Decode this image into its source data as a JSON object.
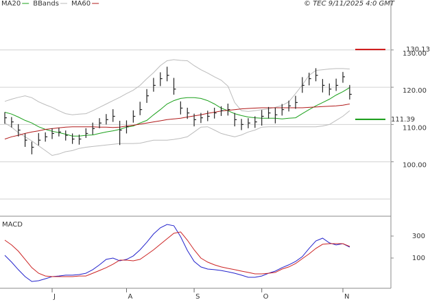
{
  "chart_data": {
    "type": "ohlc",
    "source": "© TEC 9/11/2025 4:0 GMT",
    "categories": [
      null,
      null,
      null,
      null,
      null,
      null,
      null,
      "J",
      null,
      null,
      null,
      null,
      null,
      null,
      null,
      null,
      null,
      null,
      "A",
      null,
      null,
      null,
      null,
      null,
      null,
      null,
      null,
      null,
      "S",
      null,
      null,
      null,
      null,
      null,
      null,
      null,
      null,
      null,
      "O",
      null,
      null,
      null,
      null,
      null,
      null,
      null,
      null,
      null,
      null,
      null,
      "N",
      null
    ],
    "high": [
      113.3,
      112.0,
      110.1,
      107.6,
      105.4,
      107.7,
      107.9,
      109.0,
      109.1,
      108.4,
      107.6,
      107.3,
      109.0,
      110.5,
      111.7,
      112.8,
      114.1,
      111.0,
      111.1,
      113.8,
      116.1,
      119.5,
      122.5,
      124.0,
      125.5,
      122.5,
      116.2,
      114.5,
      112.9,
      113.1,
      113.7,
      114.5,
      114.9,
      115.6,
      113.1,
      111.5,
      111.7,
      112.2,
      113.9,
      114.7,
      114.5,
      115.5,
      116.4,
      117.7,
      122.7,
      123.9,
      125.1,
      122.2,
      121.0,
      122.3,
      124.1,
      120.6
    ],
    "low": [
      110.2,
      109.2,
      106.8,
      104.0,
      102.0,
      104.4,
      105.4,
      106.1,
      106.8,
      105.7,
      104.8,
      104.6,
      106.4,
      107.3,
      109.0,
      110.0,
      110.7,
      104.5,
      107.6,
      110.5,
      112.5,
      115.8,
      118.8,
      120.3,
      121.6,
      118.0,
      112.7,
      111.5,
      109.5,
      110.4,
      110.9,
      111.6,
      112.3,
      112.4,
      109.5,
      108.5,
      109.0,
      109.1,
      109.7,
      111.6,
      110.3,
      112.4,
      113.5,
      114.2,
      118.5,
      120.5,
      121.6,
      118.6,
      117.8,
      119.0,
      121.2,
      116.7
    ],
    "close": [
      111.8,
      110.7,
      108.5,
      105.8,
      103.9,
      105.8,
      106.7,
      107.6,
      108.0,
      107.1,
      106.1,
      106.1,
      107.6,
      108.9,
      110.4,
      111.3,
      112.2,
      108.5,
      109.4,
      112.2,
      114.0,
      117.7,
      120.5,
      122.3,
      123.2,
      119.5,
      114.4,
      113.1,
      111.3,
      111.8,
      112.2,
      113.1,
      113.7,
      114.0,
      111.3,
      110.0,
      110.4,
      110.7,
      112.2,
      113.1,
      112.6,
      114.0,
      115.0,
      115.9,
      120.5,
      122.3,
      123.2,
      120.5,
      119.5,
      120.5,
      122.8,
      118.1
    ],
    "bar_color": "#222222",
    "series": [
      {
        "name": "MA20",
        "color": "#1aa01a",
        "values": [
          113.3,
          112.8,
          112.0,
          111.1,
          110.4,
          109.4,
          108.7,
          108.2,
          107.8,
          107.4,
          106.9,
          106.9,
          107.1,
          107.2,
          107.6,
          108.0,
          108.3,
          108.7,
          109.3,
          109.6,
          110.4,
          111.1,
          112.6,
          114.0,
          115.5,
          116.4,
          117.0,
          117.2,
          117.2,
          117.0,
          116.4,
          115.5,
          114.4,
          113.7,
          112.9,
          112.4,
          112.0,
          111.8,
          111.7,
          111.7,
          111.7,
          111.5,
          111.7,
          111.8,
          112.9,
          114.0,
          115.0,
          115.9,
          116.8,
          117.9,
          118.8,
          119.9
        ]
      },
      {
        "name": "BBands",
        "color": "#bbbbbb",
        "values": [
          116.2,
          116.8,
          117.3,
          117.7,
          117.2,
          116.1,
          115.3,
          114.6,
          113.7,
          112.9,
          112.6,
          112.8,
          112.9,
          113.7,
          114.6,
          115.5,
          116.4,
          117.3,
          118.3,
          119.2,
          120.5,
          122.3,
          123.9,
          125.8,
          127.1,
          127.4,
          127.2,
          127.1,
          125.8,
          124.7,
          123.8,
          122.8,
          121.9,
          120.3,
          115.9,
          113.7,
          113.5,
          113.7,
          114.0,
          114.2,
          114.6,
          115.1,
          116.1,
          118.3,
          120.6,
          123.2,
          124.5,
          124.7,
          124.9,
          125.0,
          125.0,
          124.9
        ],
        "lower": [
          110.4,
          109.3,
          107.8,
          106.7,
          105.6,
          104.3,
          103.0,
          101.7,
          102.1,
          102.7,
          103.0,
          103.6,
          103.9,
          104.1,
          104.3,
          104.5,
          104.7,
          104.9,
          104.9,
          104.9,
          105.0,
          105.4,
          105.8,
          105.8,
          105.8,
          106.0,
          106.3,
          106.7,
          108.0,
          109.3,
          109.4,
          108.5,
          107.6,
          107.1,
          106.7,
          107.2,
          108.0,
          108.5,
          109.3,
          109.4,
          109.4,
          109.4,
          109.4,
          109.4,
          109.4,
          109.4,
          109.4,
          109.6,
          110.0,
          111.1,
          112.2,
          113.7
        ]
      },
      {
        "name": "MA60",
        "color": "#b01818",
        "values": [
          106.1,
          106.7,
          107.1,
          107.6,
          108.0,
          108.3,
          108.7,
          108.9,
          109.1,
          109.3,
          109.4,
          109.4,
          109.4,
          109.4,
          109.3,
          109.3,
          109.2,
          109.3,
          109.6,
          109.8,
          110.1,
          110.4,
          110.7,
          111.0,
          111.3,
          111.5,
          111.7,
          112.0,
          112.3,
          112.6,
          113.0,
          113.3,
          113.6,
          113.8,
          114.0,
          114.2,
          114.3,
          114.4,
          114.5,
          114.5,
          114.5,
          114.5,
          114.5,
          114.5,
          114.5,
          114.6,
          114.7,
          114.8,
          114.9,
          115.0,
          115.2,
          115.5
        ]
      }
    ],
    "markers": [
      {
        "label": "130.13",
        "value": 130.13,
        "color": "#cc1111"
      },
      {
        "label": "111.39",
        "value": 111.39,
        "color": "#119911"
      }
    ],
    "ylim": [
      85.4,
      143.4
    ],
    "yticks": [
      {
        "value": 100,
        "label": "100.00"
      },
      {
        "value": 110,
        "label": "110.00"
      },
      {
        "value": 120,
        "label": "120.00"
      },
      {
        "value": 130,
        "label": "130.00"
      }
    ],
    "grid_lines": [
      90,
      100,
      110,
      120,
      130
    ],
    "macd": {
      "title": "MACD",
      "ylim": [
        -175,
        462
      ],
      "yticks": [
        100,
        300
      ],
      "series": [
        {
          "color": "#2222cc",
          "values": [
            125,
            63,
            -6,
            -69,
            -113,
            -106,
            -88,
            -69,
            -63,
            -56,
            -56,
            -50,
            -38,
            -6,
            38,
            88,
            100,
            75,
            88,
            119,
            175,
            244,
            319,
            375,
            406,
            394,
            294,
            169,
            69,
            19,
            0,
            -6,
            -13,
            -25,
            -38,
            -56,
            -75,
            -75,
            -63,
            -38,
            -19,
            13,
            38,
            69,
            113,
            188,
            256,
            281,
            238,
            219,
            231,
            200
          ]
        },
        {
          "color": "#cc2222",
          "values": [
            263,
            219,
            163,
            88,
            13,
            -38,
            -63,
            -69,
            -69,
            -69,
            -69,
            -63,
            -63,
            -38,
            -13,
            13,
            44,
            81,
            81,
            75,
            88,
            131,
            175,
            225,
            275,
            325,
            338,
            263,
            175,
            100,
            63,
            38,
            19,
            6,
            -6,
            -19,
            -31,
            -44,
            -44,
            -38,
            -31,
            0,
            19,
            50,
            94,
            138,
            188,
            225,
            231,
            231,
            231,
            206
          ]
        }
      ]
    }
  }
}
